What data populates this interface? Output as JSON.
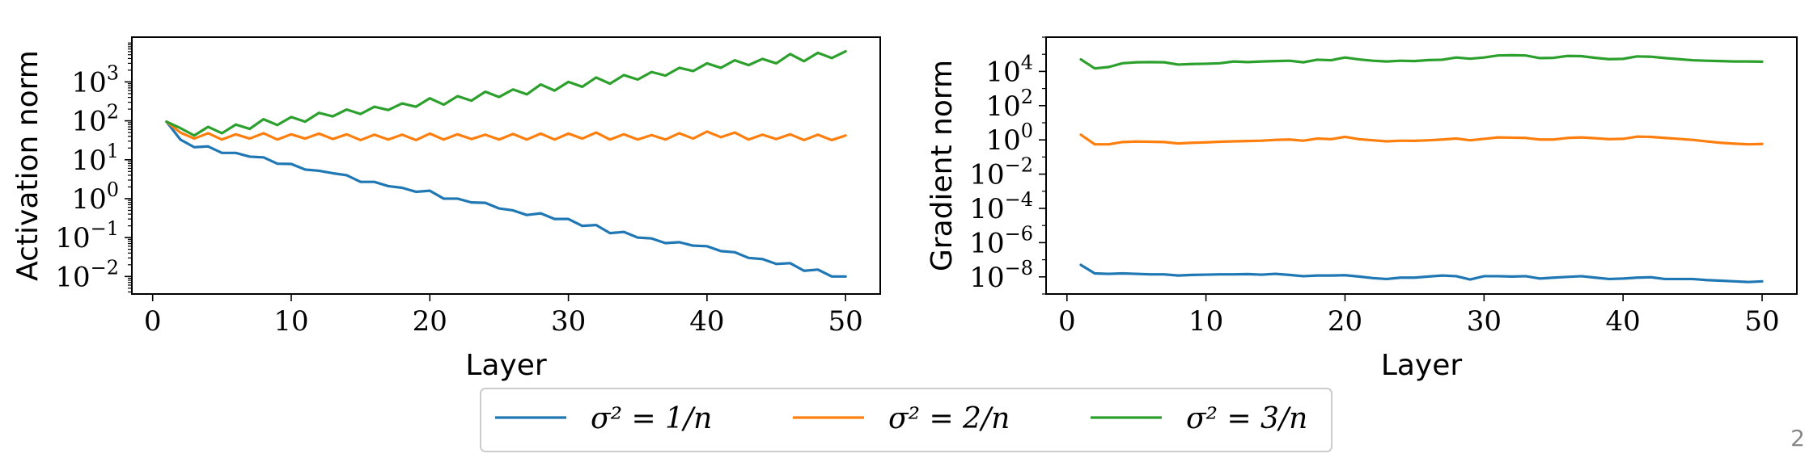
{
  "page_number": "2",
  "colors": {
    "blue": "#1f77b4",
    "orange": "#ff7f0e",
    "green": "#2ca02c"
  },
  "legend": {
    "placement": "bottom-center",
    "entries": [
      {
        "label": "σ² = 1/n",
        "color": "#1f77b4"
      },
      {
        "label": "σ² = 2/n",
        "color": "#ff7f0e"
      },
      {
        "label": "σ² = 3/n",
        "color": "#2ca02c"
      }
    ]
  },
  "chart_data": [
    {
      "id": "activation",
      "type": "line",
      "title": "",
      "xlabel": "Layer",
      "ylabel": "Activation norm",
      "yscale": "log",
      "xlim": [
        -1.5,
        52.5
      ],
      "ylim_log10": [
        -2.45,
        4.15
      ],
      "xticks": [
        0,
        10,
        20,
        30,
        40,
        50
      ],
      "yticks_exp": [
        -2,
        -1,
        0,
        1,
        2,
        3
      ],
      "grid": false,
      "x": [
        1,
        2,
        3,
        4,
        5,
        6,
        7,
        8,
        9,
        10,
        11,
        12,
        13,
        14,
        15,
        16,
        17,
        18,
        19,
        20,
        21,
        22,
        23,
        24,
        25,
        26,
        27,
        28,
        29,
        30,
        31,
        32,
        33,
        34,
        35,
        36,
        37,
        38,
        39,
        40,
        41,
        42,
        43,
        44,
        45,
        46,
        47,
        48,
        49,
        50
      ],
      "series": [
        {
          "name": "σ² = 1/n",
          "color": "#1f77b4",
          "values": [
            95,
            33,
            21,
            22,
            15,
            15,
            12,
            11.5,
            7.9,
            7.8,
            5.6,
            5.2,
            4.5,
            4.0,
            2.7,
            2.7,
            2.1,
            1.9,
            1.5,
            1.6,
            1.0,
            1.0,
            0.8,
            0.78,
            0.56,
            0.5,
            0.38,
            0.42,
            0.3,
            0.3,
            0.2,
            0.21,
            0.13,
            0.14,
            0.1,
            0.095,
            0.072,
            0.076,
            0.062,
            0.06,
            0.045,
            0.042,
            0.03,
            0.028,
            0.021,
            0.022,
            0.014,
            0.015,
            0.01,
            0.01
          ]
        },
        {
          "name": "σ² = 2/n",
          "color": "#ff7f0e",
          "values": [
            95,
            50,
            35,
            48,
            33,
            45,
            35,
            48,
            33,
            45,
            35,
            47,
            34,
            45,
            32,
            44,
            33,
            44,
            32,
            47,
            33,
            45,
            34,
            44,
            33,
            46,
            33,
            47,
            33,
            47,
            35,
            50,
            33,
            45,
            33,
            43,
            33,
            48,
            35,
            53,
            38,
            50,
            33,
            44,
            34,
            45,
            32,
            44,
            32,
            42
          ]
        },
        {
          "name": "σ² = 3/n",
          "color": "#2ca02c",
          "values": [
            95,
            65,
            42,
            70,
            48,
            80,
            62,
            110,
            78,
            125,
            95,
            160,
            130,
            195,
            150,
            230,
            190,
            280,
            230,
            380,
            260,
            430,
            330,
            560,
            410,
            640,
            480,
            860,
            600,
            1000,
            750,
            1300,
            900,
            1500,
            1150,
            1800,
            1450,
            2300,
            1900,
            3000,
            2300,
            3600,
            2700,
            3900,
            3000,
            5200,
            3400,
            5600,
            4100,
            6100
          ]
        }
      ]
    },
    {
      "id": "gradient",
      "type": "line",
      "title": "",
      "xlabel": "Layer",
      "ylabel": "Gradient norm",
      "yscale": "log",
      "xlim": [
        -1.5,
        52.5
      ],
      "ylim_log10": [
        -9.0,
        6.0
      ],
      "xticks": [
        0,
        10,
        20,
        30,
        40,
        50
      ],
      "yticks_exp": [
        -8,
        -6,
        -4,
        -2,
        0,
        2,
        4
      ],
      "grid": false,
      "x": [
        1,
        2,
        3,
        4,
        5,
        6,
        7,
        8,
        9,
        10,
        11,
        12,
        13,
        14,
        15,
        16,
        17,
        18,
        19,
        20,
        21,
        22,
        23,
        24,
        25,
        26,
        27,
        28,
        29,
        30,
        31,
        32,
        33,
        34,
        35,
        36,
        37,
        38,
        39,
        40,
        41,
        42,
        43,
        44,
        45,
        46,
        47,
        48,
        49,
        50
      ],
      "series": [
        {
          "name": "σ² = 1/n",
          "color": "#1f77b4",
          "values": [
            5e-08,
            1.6e-08,
            1.5e-08,
            1.6e-08,
            1.5e-08,
            1.4e-08,
            1.4e-08,
            1.2e-08,
            1.3e-08,
            1.35e-08,
            1.4e-08,
            1.4e-08,
            1.45e-08,
            1.35e-08,
            1.5e-08,
            1.3e-08,
            1.1e-08,
            1.2e-08,
            1.2e-08,
            1.25e-08,
            1.05e-08,
            8.5e-09,
            7.5e-09,
            9e-09,
            9e-09,
            1.05e-08,
            1.2e-08,
            1.1e-08,
            7e-09,
            1.1e-08,
            1.1e-08,
            1.05e-08,
            1.1e-08,
            8e-09,
            9e-09,
            1e-08,
            1.1e-08,
            9e-09,
            7.5e-09,
            8e-09,
            9e-09,
            9.5e-09,
            7.5e-09,
            7.5e-09,
            7.5e-09,
            6.5e-09,
            6e-09,
            5.5e-09,
            5e-09,
            5.5e-09
          ]
        },
        {
          "name": "σ² = 2/n",
          "color": "#ff7f0e",
          "values": [
            2.0,
            0.55,
            0.55,
            0.75,
            0.8,
            0.78,
            0.75,
            0.62,
            0.68,
            0.72,
            0.78,
            0.82,
            0.86,
            0.9,
            1.0,
            1.05,
            0.9,
            1.2,
            1.1,
            1.5,
            1.1,
            0.95,
            0.82,
            0.9,
            0.88,
            0.95,
            1.05,
            1.2,
            0.95,
            1.15,
            1.4,
            1.35,
            1.3,
            1.05,
            1.05,
            1.3,
            1.4,
            1.25,
            1.1,
            1.15,
            1.55,
            1.5,
            1.3,
            1.15,
            1.0,
            0.82,
            0.68,
            0.6,
            0.55,
            0.58
          ]
        },
        {
          "name": "σ² = 3/n",
          "color": "#2ca02c",
          "values": [
            50000,
            15000,
            18000,
            30000,
            34000,
            35000,
            34000,
            25000,
            27000,
            28000,
            30000,
            38000,
            35000,
            38000,
            40000,
            42000,
            34000,
            48000,
            45000,
            65000,
            50000,
            42000,
            38000,
            42000,
            40000,
            46000,
            48000,
            65000,
            55000,
            65000,
            85000,
            88000,
            85000,
            60000,
            62000,
            80000,
            78000,
            62000,
            52000,
            54000,
            75000,
            72000,
            60000,
            52000,
            45000,
            42000,
            40000,
            38000,
            38000,
            37000
          ]
        }
      ]
    }
  ]
}
